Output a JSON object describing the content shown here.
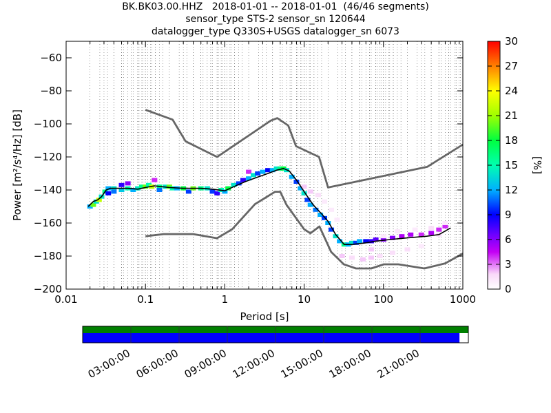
{
  "title_lines": [
    "BK.BK03.00.HHZ   2018-01-01 -- 2018-01-01  (46/46 segments)",
    "sensor_type STS-2 sensor_sn 120644",
    "datalogger_type Q330S+USGS datalogger_sn 6073"
  ],
  "chart_data": {
    "type": "heatmap",
    "xlabel": "Period [s]",
    "ylabel": "Power [m²/s⁴/Hz] [dB]",
    "x_scale": "log",
    "xlim": [
      0.01,
      1000
    ],
    "ylim": [
      -200,
      -50
    ],
    "x_ticks": [
      0.01,
      0.1,
      1,
      10,
      100,
      1000
    ],
    "x_tick_labels": [
      "0.01",
      "0.1",
      "1",
      "10",
      "100",
      "1000"
    ],
    "y_ticks": [
      -200,
      -180,
      -160,
      -140,
      -120,
      -100,
      -80,
      -60
    ],
    "y_tick_labels": [
      "−200",
      "−180",
      "−160",
      "−140",
      "−120",
      "−100",
      "−80",
      "−60"
    ],
    "grid": "dotted vertical at period bins",
    "colorbar": {
      "label": "[%]",
      "range": [
        0,
        30
      ],
      "ticks": [
        0,
        3,
        6,
        9,
        12,
        15,
        18,
        21,
        24,
        27,
        30
      ],
      "tick_labels": [
        "0",
        "3",
        "6",
        "9",
        "12",
        "15",
        "18",
        "21",
        "24",
        "27",
        "30"
      ]
    },
    "noise_model_high": {
      "x": [
        0.1,
        0.22,
        0.32,
        0.8,
        3.8,
        4.6,
        6.3,
        7.9,
        15.4,
        20,
        354.8,
        1000
      ],
      "y": [
        -91.5,
        -97.4,
        -110.5,
        -120.0,
        -98.0,
        -96.5,
        -101.0,
        -113.5,
        -120.0,
        -138.5,
        -126.0,
        -112.5
      ]
    },
    "noise_model_low": {
      "x": [
        0.1,
        0.17,
        0.4,
        0.8,
        1.24,
        2.4,
        4.3,
        5.0,
        6.0,
        10.0,
        12.0,
        15.6,
        21.9,
        31.6,
        45.0,
        70.0,
        101.0,
        154.0,
        328.0,
        600.0,
        1000.0
      ],
      "y": [
        -168.0,
        -166.7,
        -166.7,
        -169.2,
        -163.7,
        -148.6,
        -141.1,
        -141.1,
        -149.0,
        -163.8,
        -166.2,
        -162.1,
        -177.5,
        -185.0,
        -187.5,
        -187.5,
        -185.0,
        -185.0,
        -187.5,
        -184.4,
        -178.5
      ]
    },
    "mode_curve": {
      "x": [
        0.019,
        0.022,
        0.025,
        0.028,
        0.032,
        0.036,
        0.045,
        0.06,
        0.08,
        0.1,
        0.13,
        0.2,
        0.3,
        0.5,
        0.7,
        1.0,
        1.3,
        1.8,
        2.5,
        3.5,
        4.5,
        5.5,
        6.5,
        8.0,
        10.0,
        13.0,
        17.0,
        20.0,
        25.0,
        32.0,
        40.0,
        60.0,
        80.0,
        120.0,
        200.0,
        350.0,
        500.0,
        700.0
      ],
      "y": [
        -150.0,
        -147.0,
        -146.0,
        -144.0,
        -140.0,
        -139.0,
        -139.0,
        -139.0,
        -139.5,
        -138.5,
        -137.5,
        -138.5,
        -139.0,
        -139.0,
        -139.5,
        -140.5,
        -138.0,
        -135.0,
        -132.5,
        -130.0,
        -128.0,
        -127.0,
        -128.5,
        -134.0,
        -141.0,
        -149.0,
        -155.0,
        -159.0,
        -167.0,
        -173.0,
        -173.0,
        -172.0,
        -171.0,
        -170.0,
        -169.0,
        -168.0,
        -167.0,
        -163.0
      ]
    },
    "density_cells": [
      {
        "x": 0.02,
        "y": -150,
        "pct": 12
      },
      {
        "x": 0.022,
        "y": -149,
        "pct": 20
      },
      {
        "x": 0.024,
        "y": -147,
        "pct": 14
      },
      {
        "x": 0.026,
        "y": -146,
        "pct": 22
      },
      {
        "x": 0.028,
        "y": -144,
        "pct": 14
      },
      {
        "x": 0.031,
        "y": -141,
        "pct": 16
      },
      {
        "x": 0.034,
        "y": -139,
        "pct": 12
      },
      {
        "x": 0.034,
        "y": -142,
        "pct": 9
      },
      {
        "x": 0.04,
        "y": -139,
        "pct": 14
      },
      {
        "x": 0.04,
        "y": -141,
        "pct": 11
      },
      {
        "x": 0.05,
        "y": -140,
        "pct": 13
      },
      {
        "x": 0.05,
        "y": -137,
        "pct": 8
      },
      {
        "x": 0.06,
        "y": -139,
        "pct": 15
      },
      {
        "x": 0.06,
        "y": -136,
        "pct": 6
      },
      {
        "x": 0.07,
        "y": -140,
        "pct": 12
      },
      {
        "x": 0.08,
        "y": -139,
        "pct": 14
      },
      {
        "x": 0.09,
        "y": -138,
        "pct": 16
      },
      {
        "x": 0.1,
        "y": -138,
        "pct": 20
      },
      {
        "x": 0.11,
        "y": -137,
        "pct": 15
      },
      {
        "x": 0.12,
        "y": -138,
        "pct": 22
      },
      {
        "x": 0.13,
        "y": -134,
        "pct": 4
      },
      {
        "x": 0.15,
        "y": -138,
        "pct": 16
      },
      {
        "x": 0.15,
        "y": -140,
        "pct": 11
      },
      {
        "x": 0.18,
        "y": -138,
        "pct": 14
      },
      {
        "x": 0.2,
        "y": -138,
        "pct": 20
      },
      {
        "x": 0.22,
        "y": -139,
        "pct": 15
      },
      {
        "x": 0.25,
        "y": -139,
        "pct": 12
      },
      {
        "x": 0.3,
        "y": -139,
        "pct": 18
      },
      {
        "x": 0.35,
        "y": -141,
        "pct": 10
      },
      {
        "x": 0.4,
        "y": -139,
        "pct": 20
      },
      {
        "x": 0.5,
        "y": -139,
        "pct": 16
      },
      {
        "x": 0.6,
        "y": -139,
        "pct": 14
      },
      {
        "x": 0.7,
        "y": -141,
        "pct": 10
      },
      {
        "x": 0.8,
        "y": -142,
        "pct": 8
      },
      {
        "x": 0.9,
        "y": -140,
        "pct": 15
      },
      {
        "x": 1.0,
        "y": -141,
        "pct": 12
      },
      {
        "x": 1.1,
        "y": -139,
        "pct": 18
      },
      {
        "x": 1.3,
        "y": -137,
        "pct": 14
      },
      {
        "x": 1.5,
        "y": -136,
        "pct": 10
      },
      {
        "x": 1.7,
        "y": -134,
        "pct": 8
      },
      {
        "x": 2.0,
        "y": -133,
        "pct": 12
      },
      {
        "x": 2.0,
        "y": -129,
        "pct": 4
      },
      {
        "x": 2.3,
        "y": -131,
        "pct": 14
      },
      {
        "x": 2.6,
        "y": -130,
        "pct": 10
      },
      {
        "x": 3.0,
        "y": -129,
        "pct": 12
      },
      {
        "x": 3.5,
        "y": -128,
        "pct": 9
      },
      {
        "x": 4.0,
        "y": -128,
        "pct": 12
      },
      {
        "x": 4.5,
        "y": -127,
        "pct": 14
      },
      {
        "x": 5.0,
        "y": -127,
        "pct": 16
      },
      {
        "x": 5.5,
        "y": -127,
        "pct": 18
      },
      {
        "x": 6.0,
        "y": -128,
        "pct": 14
      },
      {
        "x": 7.0,
        "y": -132,
        "pct": 12
      },
      {
        "x": 8.0,
        "y": -135,
        "pct": 10
      },
      {
        "x": 9.0,
        "y": -139,
        "pct": 12
      },
      {
        "x": 10.0,
        "y": -142,
        "pct": 14
      },
      {
        "x": 11.0,
        "y": -146,
        "pct": 10
      },
      {
        "x": 12.0,
        "y": -149,
        "pct": 12
      },
      {
        "x": 14.0,
        "y": -152,
        "pct": 11
      },
      {
        "x": 16.0,
        "y": -155,
        "pct": 12
      },
      {
        "x": 18.0,
        "y": -157,
        "pct": 10
      },
      {
        "x": 20.0,
        "y": -160,
        "pct": 12
      },
      {
        "x": 22.0,
        "y": -164,
        "pct": 10
      },
      {
        "x": 25.0,
        "y": -168,
        "pct": 14
      },
      {
        "x": 28.0,
        "y": -171,
        "pct": 12
      },
      {
        "x": 32.0,
        "y": -173,
        "pct": 16
      },
      {
        "x": 36.0,
        "y": -173,
        "pct": 12
      },
      {
        "x": 40.0,
        "y": -172,
        "pct": 14
      },
      {
        "x": 45.0,
        "y": -172,
        "pct": 10
      },
      {
        "x": 50.0,
        "y": -171,
        "pct": 12
      },
      {
        "x": 60.0,
        "y": -171,
        "pct": 9
      },
      {
        "x": 70.0,
        "y": -171,
        "pct": 8
      },
      {
        "x": 80.0,
        "y": -170,
        "pct": 7
      },
      {
        "x": 100.0,
        "y": -170,
        "pct": 6
      },
      {
        "x": 130.0,
        "y": -169,
        "pct": 6
      },
      {
        "x": 170.0,
        "y": -168,
        "pct": 5
      },
      {
        "x": 220.0,
        "y": -167,
        "pct": 5
      },
      {
        "x": 300.0,
        "y": -167,
        "pct": 4
      },
      {
        "x": 400.0,
        "y": -166,
        "pct": 5
      },
      {
        "x": 500.0,
        "y": -164,
        "pct": 4
      },
      {
        "x": 600.0,
        "y": -162,
        "pct": 4
      },
      {
        "x": 30.0,
        "y": -180,
        "pct": 2
      },
      {
        "x": 40.0,
        "y": -181,
        "pct": 1.5
      },
      {
        "x": 55.0,
        "y": -182,
        "pct": 2
      },
      {
        "x": 70.0,
        "y": -181,
        "pct": 2
      },
      {
        "x": 90.0,
        "y": -180,
        "pct": 1.5
      },
      {
        "x": 130.0,
        "y": -178,
        "pct": 1.5
      },
      {
        "x": 200.0,
        "y": -176,
        "pct": 1.5
      },
      {
        "x": 300.0,
        "y": -174,
        "pct": 1
      },
      {
        "x": 500.0,
        "y": -167,
        "pct": 1.5
      },
      {
        "x": 600.0,
        "y": -160,
        "pct": 1
      },
      {
        "x": 400.0,
        "y": -163,
        "pct": 1.5
      },
      {
        "x": 250.0,
        "y": -164,
        "pct": 1
      },
      {
        "x": 150.0,
        "y": -165,
        "pct": 1
      },
      {
        "x": 100.0,
        "y": -168,
        "pct": 1
      },
      {
        "x": 70.0,
        "y": -176,
        "pct": 2
      },
      {
        "x": 12.0,
        "y": -141,
        "pct": 2
      },
      {
        "x": 15.0,
        "y": -143,
        "pct": 1.5
      },
      {
        "x": 18.0,
        "y": -147,
        "pct": 1
      },
      {
        "x": 22.0,
        "y": -152,
        "pct": 1
      },
      {
        "x": 26.0,
        "y": -158,
        "pct": 1
      },
      {
        "x": 10.0,
        "y": -138,
        "pct": 2
      }
    ]
  },
  "timeline": {
    "tick_labels": [
      "03:00:00",
      "06:00:00",
      "09:00:00",
      "12:00:00",
      "15:00:00",
      "18:00:00",
      "21:00:00"
    ],
    "tick_hours": [
      3,
      6,
      9,
      12,
      15,
      18,
      21
    ],
    "range_hours": [
      0,
      24
    ],
    "data_coverage": 1.0,
    "psd_coverage": 0.977,
    "data_color": "#008000",
    "psd_color": "#0000ff"
  }
}
